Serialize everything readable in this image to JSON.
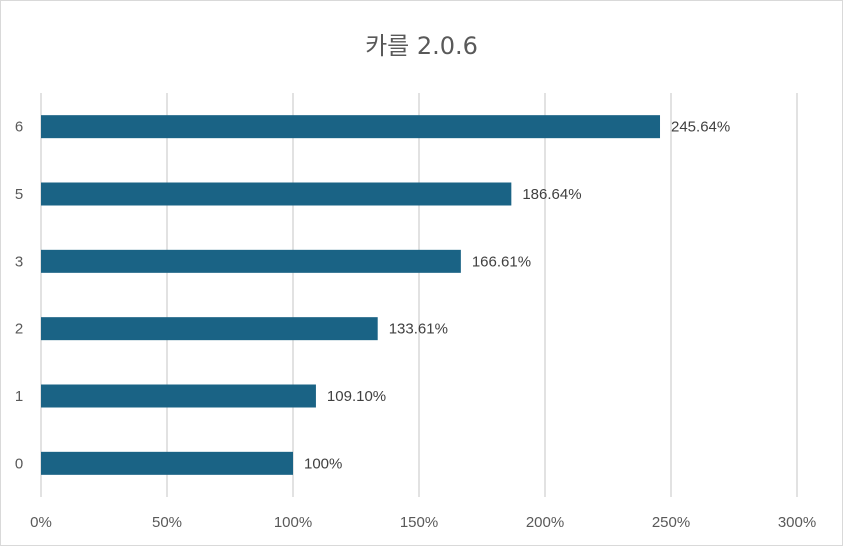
{
  "chart_data": {
    "type": "bar",
    "orientation": "horizontal",
    "title": "카를 2.0.6",
    "xlabel": "",
    "ylabel": "",
    "categories": [
      "0",
      "1",
      "2",
      "3",
      "5",
      "6"
    ],
    "values": [
      100,
      109.1,
      133.61,
      166.61,
      186.64,
      245.64
    ],
    "data_labels": [
      "100%",
      "109.10%",
      "133.61%",
      "166.61%",
      "186.64%",
      "245.64%"
    ],
    "xlim": [
      0,
      300
    ],
    "x_ticks": [
      0,
      50,
      100,
      150,
      200,
      250,
      300
    ],
    "x_tick_labels": [
      "0%",
      "50%",
      "100%",
      "150%",
      "200%",
      "250%",
      "300%"
    ],
    "grid": "vertical",
    "legend": "none",
    "bar_color": "#1a6385"
  }
}
